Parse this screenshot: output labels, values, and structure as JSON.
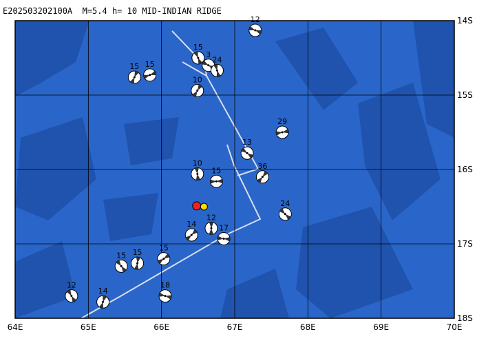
{
  "title": "E202503202100A  M=5.4 h= 10 MID-INDIAN RIDGE",
  "xlim": [
    64,
    70
  ],
  "ylim": [
    14,
    18
  ],
  "xticks": [
    {
      "value": 64,
      "label": "64E"
    },
    {
      "value": 65,
      "label": "65E"
    },
    {
      "value": 66,
      "label": "66E"
    },
    {
      "value": 67,
      "label": "67E"
    },
    {
      "value": 68,
      "label": "68E"
    },
    {
      "value": 69,
      "label": "69E"
    },
    {
      "value": 70,
      "label": "70E"
    }
  ],
  "yticks": [
    {
      "value": 14,
      "label": "14S"
    },
    {
      "value": 15,
      "label": "15S"
    },
    {
      "value": 16,
      "label": "16S"
    },
    {
      "value": 17,
      "label": "17S"
    },
    {
      "value": 18,
      "label": "18S"
    }
  ],
  "epicenter": {
    "lon": 66.48,
    "lat": 16.49
  },
  "centroid": {
    "lon": 66.58,
    "lat": 16.5
  },
  "events": [
    {
      "lon": 67.28,
      "lat": 14.13,
      "depth": "12"
    },
    {
      "lon": 66.5,
      "lat": 14.5,
      "depth": "15"
    },
    {
      "lon": 65.63,
      "lat": 14.76,
      "depth": "15"
    },
    {
      "lon": 65.84,
      "lat": 14.73,
      "depth": "15"
    },
    {
      "lon": 66.64,
      "lat": 14.6,
      "depth": "3"
    },
    {
      "lon": 66.76,
      "lat": 14.67,
      "depth": "24"
    },
    {
      "lon": 66.49,
      "lat": 14.94,
      "depth": "10"
    },
    {
      "lon": 67.65,
      "lat": 15.5,
      "depth": "29"
    },
    {
      "lon": 67.17,
      "lat": 15.78,
      "depth": "13"
    },
    {
      "lon": 66.49,
      "lat": 16.06,
      "depth": "10"
    },
    {
      "lon": 67.38,
      "lat": 16.1,
      "depth": "36"
    },
    {
      "lon": 66.75,
      "lat": 16.16,
      "depth": "15"
    },
    {
      "lon": 67.69,
      "lat": 16.6,
      "depth": "24"
    },
    {
      "lon": 66.68,
      "lat": 16.79,
      "depth": "12"
    },
    {
      "lon": 66.41,
      "lat": 16.88,
      "depth": "14"
    },
    {
      "lon": 66.85,
      "lat": 16.93,
      "depth": "17"
    },
    {
      "lon": 65.45,
      "lat": 17.3,
      "depth": "15"
    },
    {
      "lon": 65.67,
      "lat": 17.26,
      "depth": "15"
    },
    {
      "lon": 66.03,
      "lat": 17.2,
      "depth": "15"
    },
    {
      "lon": 66.05,
      "lat": 17.7,
      "depth": "18"
    },
    {
      "lon": 64.77,
      "lat": 17.7,
      "depth": "12"
    },
    {
      "lon": 65.2,
      "lat": 17.78,
      "depth": "14"
    }
  ]
}
